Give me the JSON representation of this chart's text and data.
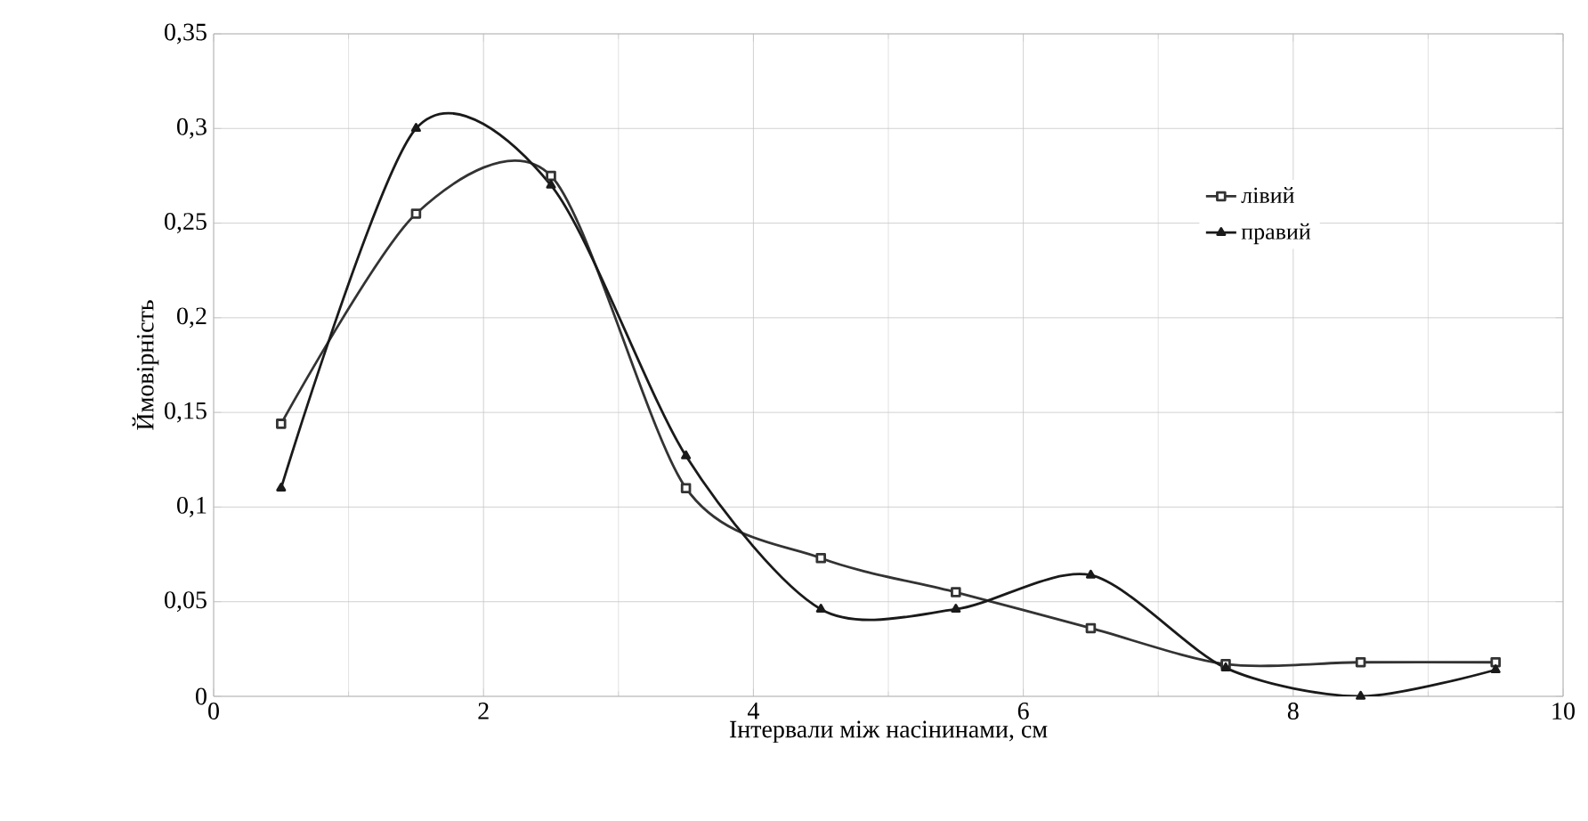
{
  "chart_data": {
    "type": "line",
    "xlabel": "Інтервали між насінинами, см",
    "ylabel": "Ймовірність",
    "x": [
      0.5,
      1.5,
      2.5,
      3.5,
      4.5,
      5.5,
      6.5,
      7.5,
      8.5,
      9.5
    ],
    "series": [
      {
        "name": "лівий",
        "color": "#333333",
        "marker": "square",
        "values": [
          0.144,
          0.255,
          0.275,
          0.11,
          0.073,
          0.055,
          0.036,
          0.017,
          0.018,
          0.018
        ]
      },
      {
        "name": "правий",
        "color": "#1a1a1a",
        "marker": "triangle",
        "values": [
          0.11,
          0.3,
          0.27,
          0.127,
          0.046,
          0.046,
          0.064,
          0.015,
          0,
          0.014
        ]
      }
    ],
    "xlim": [
      0,
      10
    ],
    "xticks": [
      0,
      2,
      4,
      6,
      8,
      10
    ],
    "ylim": [
      0,
      0.35
    ],
    "yticks": [
      {
        "value": 0,
        "label": "0"
      },
      {
        "value": 0.05,
        "label": "0,05"
      },
      {
        "value": 0.1,
        "label": "0,1"
      },
      {
        "value": 0.15,
        "label": "0,15"
      },
      {
        "value": 0.2,
        "label": "0,2"
      },
      {
        "value": 0.25,
        "label": "0,25"
      },
      {
        "value": 0.3,
        "label": "0,3"
      },
      {
        "value": 0.35,
        "label": "0,35"
      }
    ],
    "grid": true,
    "legend": "right",
    "line_style": "solid"
  }
}
